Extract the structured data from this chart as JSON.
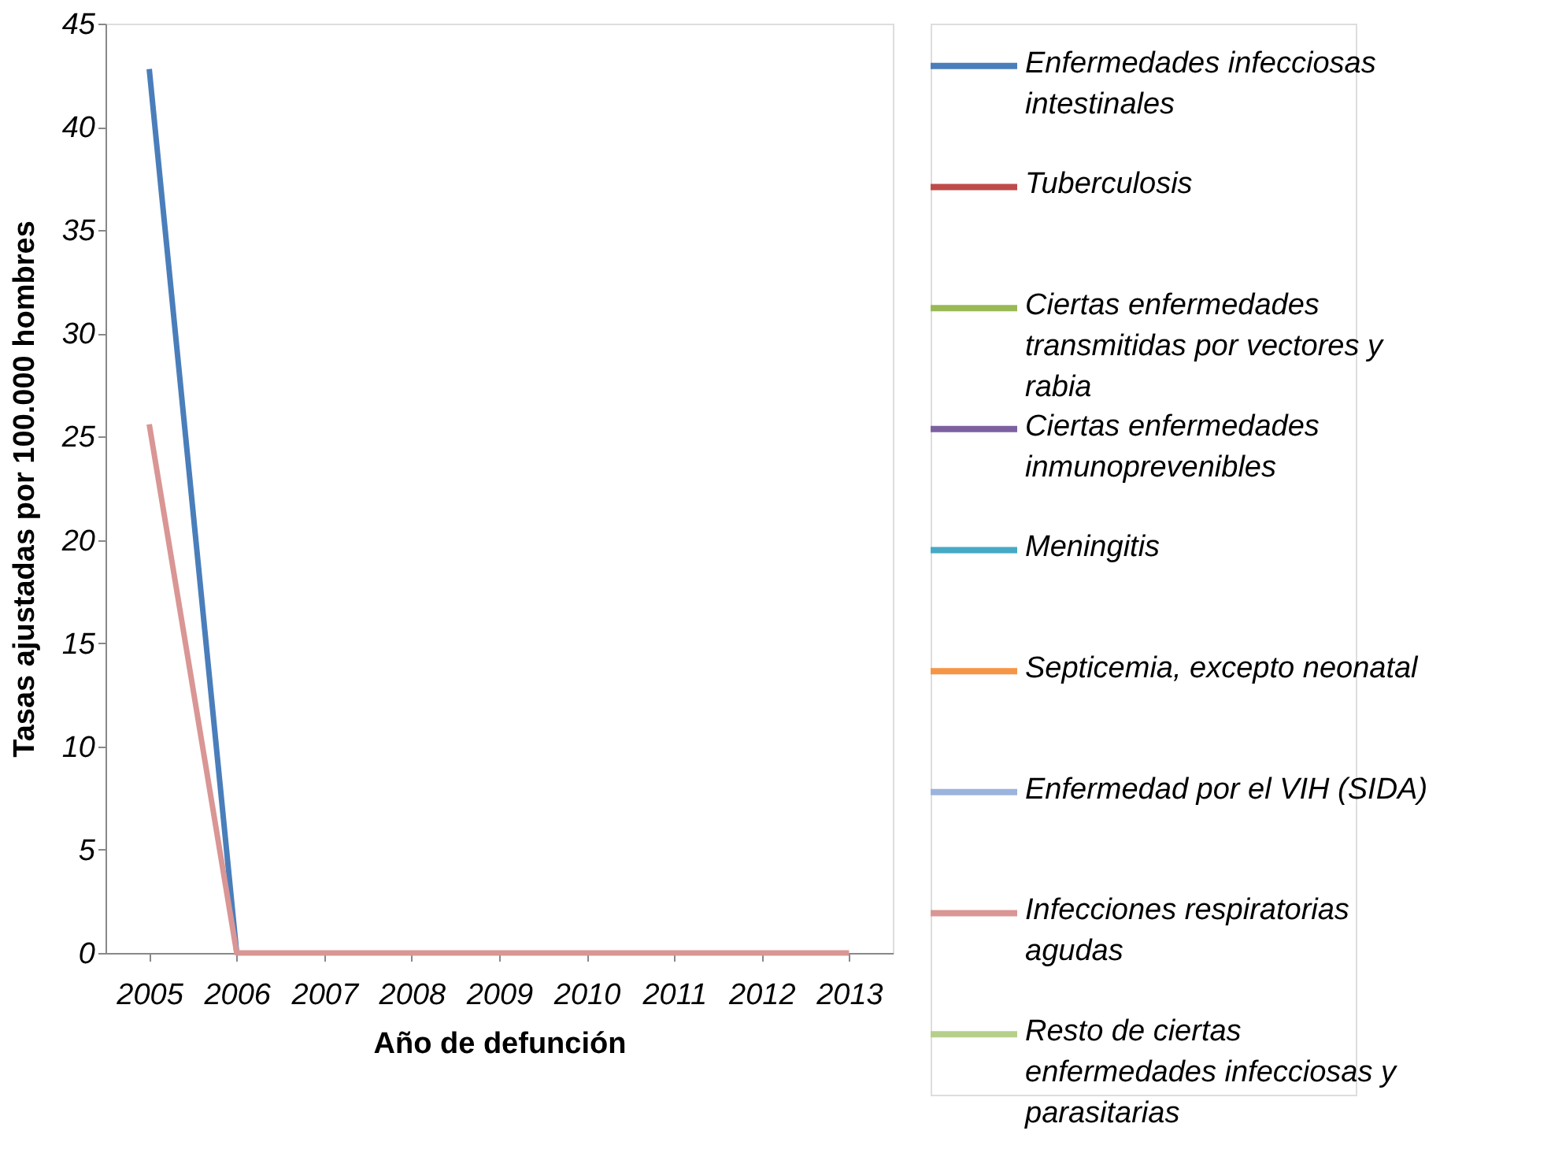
{
  "chart_data": {
    "type": "line",
    "xlabel": "Año de defunción",
    "ylabel": "Tasas ajustadas por 100.000 hombres",
    "categories": [
      "2005",
      "2006",
      "2007",
      "2008",
      "2009",
      "2010",
      "2011",
      "2012",
      "2013"
    ],
    "ylim": [
      0,
      45
    ],
    "yticks": [
      0,
      5,
      10,
      15,
      20,
      25,
      30,
      35,
      40,
      45
    ],
    "legend": "right",
    "grid": false,
    "marker": "none",
    "line_style": "solid",
    "series": [
      {
        "name": "Enfermedades infecciosas intestinales",
        "color": "#4a7ebb",
        "values": [
          42.8,
          0,
          null,
          null,
          null,
          null,
          null,
          null,
          null
        ]
      },
      {
        "name": "Tuberculosis",
        "color": "#be4b48",
        "values": [
          null,
          null,
          null,
          null,
          null,
          null,
          null,
          null,
          null
        ]
      },
      {
        "name": "Ciertas enfermedades transmitidas por vectores y rabia",
        "color": "#98b954",
        "values": [
          null,
          null,
          null,
          null,
          null,
          null,
          null,
          null,
          null
        ]
      },
      {
        "name": "Ciertas enfermedades inmunoprevenibles",
        "color": "#7d60a0",
        "values": [
          null,
          null,
          null,
          null,
          null,
          null,
          null,
          null,
          null
        ]
      },
      {
        "name": "Meningitis",
        "color": "#46aac5",
        "values": [
          null,
          null,
          null,
          null,
          null,
          null,
          null,
          null,
          null
        ]
      },
      {
        "name": "Septicemia, excepto neonatal",
        "color": "#f69546",
        "values": [
          null,
          null,
          null,
          null,
          null,
          null,
          null,
          null,
          null
        ]
      },
      {
        "name": "Enfermedad por el VIH (SIDA)",
        "color": "#9bb4de",
        "values": [
          null,
          null,
          null,
          null,
          null,
          null,
          null,
          null,
          null
        ]
      },
      {
        "name": "Infecciones respiratorias agudas",
        "color": "#d99694",
        "values": [
          25.6,
          0,
          0,
          0,
          0,
          0,
          0,
          0,
          0
        ]
      },
      {
        "name": "Resto de ciertas enfermedades infecciosas y parasitarias",
        "color": "#b6cf8b",
        "values": [
          null,
          null,
          null,
          null,
          null,
          null,
          null,
          null,
          null
        ]
      }
    ]
  }
}
